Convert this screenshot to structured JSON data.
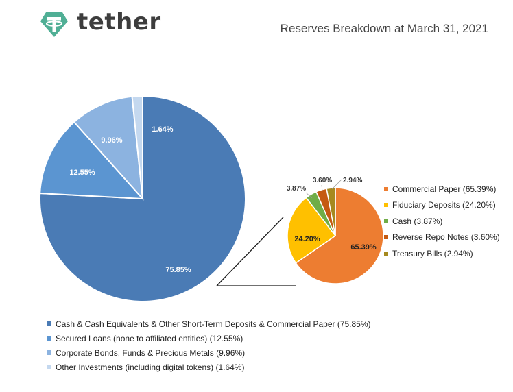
{
  "header": {
    "brand": "tether",
    "title": "Reserves Breakdown at March 31, 2021"
  },
  "colors": {
    "brand": "#50af95",
    "blue_dark": "#4a7bb5",
    "blue_mid": "#5b95d1",
    "blue_light": "#8cb3e0",
    "blue_pale": "#c4d8ef",
    "orange": "#ed7d31",
    "yellow": "#ffc000",
    "green": "#70ad47",
    "brown": "#c55a11",
    "olive": "#a5891f"
  },
  "chart_data": [
    {
      "type": "pie",
      "categories": [
        "Cash & Cash Equivalents & Other Short-Term Deposits & Commercial Paper (75.85%)",
        "Secured Loans (none to affiliated entities) (12.55%)",
        "Corporate Bonds, Funds & Precious Metals (9.96%)",
        "Other Investments (including digital tokens) (1.64%)"
      ],
      "values": [
        75.85,
        12.55,
        9.96,
        1.64
      ],
      "labels": [
        "75.85%",
        "12.55%",
        "9.96%",
        "1.64%"
      ],
      "colors": [
        "#4a7bb5",
        "#5b95d1",
        "#8cb3e0",
        "#c4d8ef"
      ],
      "legend": "bottom"
    },
    {
      "type": "pie",
      "categories": [
        "Commercial Paper (65.39%)",
        "Fiduciary Deposits (24.20%)",
        "Cash (3.87%)",
        "Reverse Repo Notes (3.60%)",
        "Treasury Bills (2.94%)"
      ],
      "values": [
        65.39,
        24.2,
        3.87,
        3.6,
        2.94
      ],
      "labels": [
        "65.39%",
        "24.20%",
        "3.87%",
        "3.60%",
        "2.94%"
      ],
      "colors": [
        "#ed7d31",
        "#ffc000",
        "#70ad47",
        "#c55a11",
        "#a5891f"
      ],
      "legend": "right"
    }
  ]
}
